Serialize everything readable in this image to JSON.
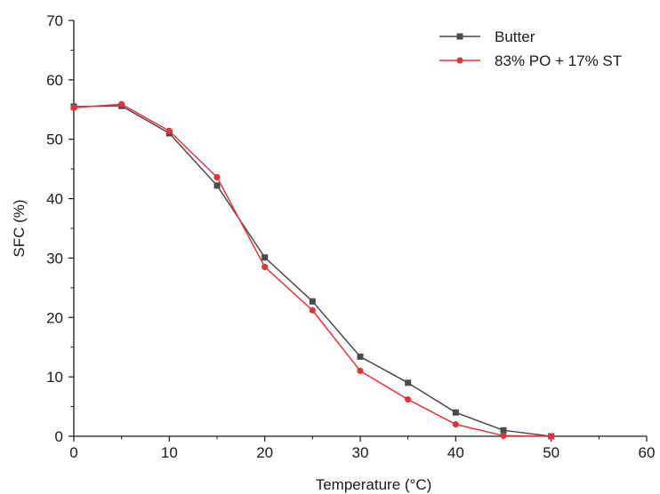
{
  "chart_data": {
    "type": "line",
    "title": "",
    "xlabel": "Temperature (°C)",
    "ylabel": "SFC (%)",
    "xlim": [
      0,
      60
    ],
    "ylim": [
      0,
      70
    ],
    "x_ticks": [
      "0",
      "10",
      "20",
      "30",
      "40",
      "50",
      "60"
    ],
    "y_ticks": [
      "0",
      "10",
      "20",
      "30",
      "40",
      "50",
      "60",
      "70"
    ],
    "grid": false,
    "legend_position": "top-right",
    "series": [
      {
        "name": "Butter",
        "color": "#4a4a4a",
        "marker": "square",
        "x": [
          0,
          5,
          10,
          15,
          20,
          25,
          30,
          35,
          40,
          45,
          50
        ],
        "y": [
          55.5,
          55.6,
          51.0,
          42.2,
          30.1,
          22.7,
          13.4,
          9.0,
          4.0,
          1.0,
          0.0
        ]
      },
      {
        "name": "83% PO + 17% ST",
        "color": "#e0353b",
        "marker": "circle",
        "x": [
          0,
          5,
          10,
          15,
          20,
          25,
          30,
          35,
          40,
          45,
          50
        ],
        "y": [
          55.3,
          55.9,
          51.4,
          43.6,
          28.5,
          21.2,
          11.0,
          6.2,
          2.0,
          0.1,
          0.0
        ]
      }
    ]
  }
}
